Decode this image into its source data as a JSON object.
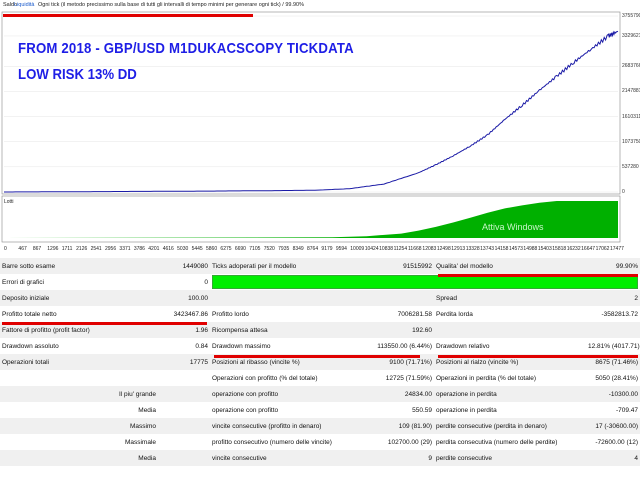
{
  "header": {
    "tabs": [
      "Saldo",
      "Liquidità"
    ],
    "model_text": "Ogni tick (il metodo precissimo sulla base di tutti gli intervalli di tempo minimi per generare ogni tick)",
    "quality": "99.90%"
  },
  "overlay": {
    "line1": "FROM 2018 - GBP/USD M1DUKACSCOPY TICKDATA",
    "line2": "LOW RISK 13% DD"
  },
  "lots_label": "Lotti",
  "watermark": "Attiva Windows",
  "colors": {
    "balance_line": "#1a1aa6",
    "lots_fill": "#00b000",
    "quality_bar": "#00ee00",
    "highlight": "#e00000",
    "overlay_text": "#1e1ee6"
  },
  "chart_data": {
    "type": "line",
    "series": [
      {
        "x": [
          0,
          1000,
          2000,
          3000,
          4000,
          5000,
          6000,
          7000,
          8000,
          9000,
          10000,
          11000,
          12000,
          12500,
          13000,
          13500,
          14000,
          14500,
          15000,
          15500,
          16000,
          16500,
          17000,
          17500,
          17775
        ],
        "values": [
          100,
          3000,
          6000,
          9000,
          13000,
          16000,
          20000,
          25000,
          30000,
          38000,
          70000,
          170000,
          410000,
          580000,
          770000,
          980000,
          1220000,
          1550000,
          1850000,
          2170000,
          2470000,
          2770000,
          3050000,
          3330000,
          3430000
        ]
      }
    ],
    "ytick_labels": [
      "3755790",
      "3329621",
      "2683766",
      "2147881",
      "1610311",
      "1073750",
      "537280",
      "0"
    ],
    "yticks": [
      3755790,
      3329621,
      2683766,
      2147881,
      1610311,
      1073750,
      537280,
      0
    ],
    "ylim": [
      0,
      3755790
    ],
    "xtick_labels": [
      "0",
      "467",
      "867",
      "1296",
      "1711",
      "2126",
      "2541",
      "2956",
      "3371",
      "3786",
      "4201",
      "4616",
      "5030",
      "5445",
      "5860",
      "6275",
      "6690",
      "7105",
      "7520",
      "7935",
      "8349",
      "8764",
      "9179",
      "9594",
      "10009",
      "10424",
      "10838",
      "11254",
      "11668",
      "12083",
      "12498",
      "12913",
      "13328",
      "13743",
      "14158",
      "14573",
      "14988",
      "15403",
      "15818",
      "16232",
      "16647",
      "17062",
      "17477"
    ],
    "xlim": [
      0,
      17775
    ],
    "lots": {
      "x": [
        0,
        9500,
        10500,
        11500,
        12000,
        12500,
        13000,
        13500,
        14000,
        14500,
        15000,
        15500,
        16000,
        16500,
        17000,
        17775
      ],
      "values": [
        0,
        0.02,
        0.05,
        0.12,
        0.2,
        0.3,
        0.42,
        0.55,
        0.68,
        0.8,
        0.88,
        0.95,
        1.0,
        1.0,
        1.0,
        1.0
      ]
    }
  },
  "report": {
    "rows": [
      [
        "Barre sotto esame",
        "1449080",
        "Ticks adoperati per il modello",
        "91515992",
        "Qualita' del modello",
        "99.90%"
      ],
      [
        "Errori di grafici",
        "0",
        "",
        "",
        "",
        ""
      ],
      [
        "Deposito iniziale",
        "100.00",
        "",
        "",
        "Spread",
        "2"
      ],
      [
        "Profitto totale netto",
        "3423467.86",
        "Profitto lordo",
        "7006281.58",
        "Perdita lorda",
        "-3582813.72"
      ],
      [
        "Fattore di profitto (profit factor)",
        "1.96",
        "Ricompensa attesa",
        "192.60",
        "",
        ""
      ],
      [
        "Drawdown assoluto",
        "0.84",
        "Drawdown massimo",
        "113550.00 (6.44%)",
        "Drawdown relativo",
        "12.81% (4017.71)"
      ],
      [
        "Operazioni totali",
        "17775",
        "Posizioni al ribasso (vincite %)",
        "9100 (71.71%)",
        "Posizioni al rialzo (vincite %)",
        "8675 (71.46%)"
      ],
      [
        "",
        "",
        "Operazioni con profitto (% del totale)",
        "12725 (71.59%)",
        "Operazioni in perdita (% del totale)",
        "5050 (28.41%)"
      ],
      [
        "Il piu' grande",
        "",
        "operazione con profitto",
        "24834.00",
        "operazione in perdita",
        "-10300.00"
      ],
      [
        "Media",
        "",
        "operazione con profitto",
        "550.59",
        "operazione in perdita",
        "-709.47"
      ],
      [
        "Massimo",
        "",
        "vincite consecutive (profitto in denaro)",
        "109 (81.90)",
        "perdite consecutive (perdita in denaro)",
        "17 (-30600.00)"
      ],
      [
        "Massimale",
        "",
        "profitto consecutivo (numero delle vincite)",
        "102700.00 (29)",
        "perdita consecutiva (numero delle perdite)",
        "-72600.00 (12)"
      ],
      [
        "Media",
        "",
        "vincite consecutive",
        "9",
        "perdite consecutive",
        "4"
      ]
    ]
  }
}
